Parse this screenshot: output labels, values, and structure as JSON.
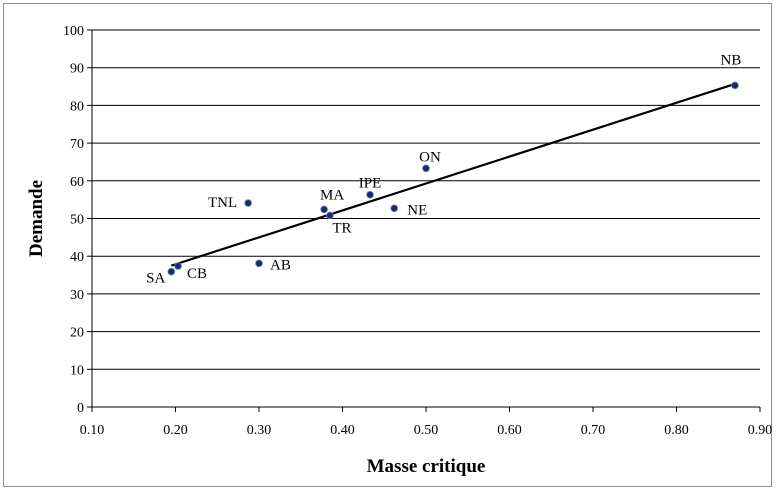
{
  "chart_data": {
    "type": "scatter",
    "title": "",
    "xlabel": "Masse critique",
    "ylabel": "Demande",
    "xlim": [
      0.1,
      0.9
    ],
    "ylim": [
      0,
      100
    ],
    "x_ticks": [
      "0.10",
      "0.20",
      "0.30",
      "0.40",
      "0.50",
      "0.60",
      "0.70",
      "0.80",
      "0.90"
    ],
    "y_ticks": [
      "0",
      "10",
      "20",
      "30",
      "40",
      "50",
      "60",
      "70",
      "80",
      "90",
      "100"
    ],
    "grid": "horizontal",
    "legend": "none",
    "point_color": "#1c2a6b",
    "series": [
      {
        "points": [
          {
            "label": "NB",
            "x": 0.87,
            "y": 85.3
          },
          {
            "label": "ON",
            "x": 0.5,
            "y": 63.3
          },
          {
            "label": "IPE",
            "x": 0.433,
            "y": 56.3
          },
          {
            "label": "NE",
            "x": 0.462,
            "y": 52.7
          },
          {
            "label": "MA",
            "x": 0.378,
            "y": 52.4
          },
          {
            "label": "TR",
            "x": 0.385,
            "y": 50.8
          },
          {
            "label": "TNL",
            "x": 0.287,
            "y": 54.1
          },
          {
            "label": "AB",
            "x": 0.3,
            "y": 38.1
          },
          {
            "label": "CB",
            "x": 0.203,
            "y": 37.4
          },
          {
            "label": "SA",
            "x": 0.195,
            "y": 35.9
          }
        ]
      }
    ],
    "trendline": {
      "x": [
        0.195,
        0.87
      ],
      "y": [
        37.5,
        85.7
      ]
    }
  }
}
